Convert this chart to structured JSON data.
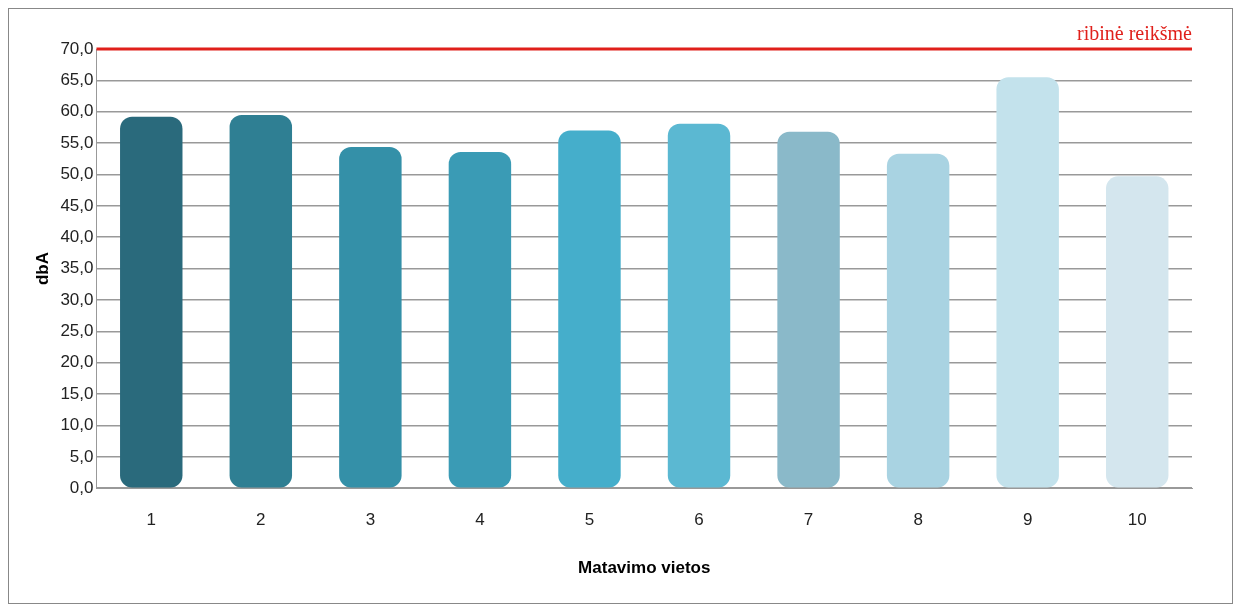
{
  "chart_data": {
    "type": "bar",
    "xlabel": "Matavimo vietos",
    "ylabel": "dbA",
    "categories": [
      "1",
      "2",
      "3",
      "4",
      "5",
      "6",
      "7",
      "8",
      "9",
      "10"
    ],
    "values": [
      59.2,
      59.5,
      54.4,
      53.6,
      57.0,
      58.1,
      56.8,
      53.3,
      65.5,
      49.7
    ],
    "colors": [
      "#2a6a7c",
      "#2f7f93",
      "#3490a8",
      "#3a9bb5",
      "#45aecb",
      "#5bb8d2",
      "#8ab9c9",
      "#a9d3e2",
      "#c3e2ec",
      "#d4e6ee"
    ],
    "ylim": [
      0,
      70
    ],
    "yticks": [
      {
        "value": 0,
        "label": "0,0"
      },
      {
        "value": 5,
        "label": "5,0"
      },
      {
        "value": 10,
        "label": "10,0"
      },
      {
        "value": 15,
        "label": "15,0"
      },
      {
        "value": 20,
        "label": "20,0"
      },
      {
        "value": 25,
        "label": "25,0"
      },
      {
        "value": 30,
        "label": "30,0"
      },
      {
        "value": 35,
        "label": "35,0"
      },
      {
        "value": 40,
        "label": "40,0"
      },
      {
        "value": 45,
        "label": "45,0"
      },
      {
        "value": 50,
        "label": "50,0"
      },
      {
        "value": 55,
        "label": "55,0"
      },
      {
        "value": 60,
        "label": "60,0"
      },
      {
        "value": 65,
        "label": "65,0"
      },
      {
        "value": 70,
        "label": "70,0"
      }
    ],
    "grid": "y",
    "legend": false,
    "ref_lines": [
      {
        "axis": "y",
        "value": 70,
        "label": "ribinė reikšmė",
        "color": "#e0201b"
      }
    ]
  }
}
